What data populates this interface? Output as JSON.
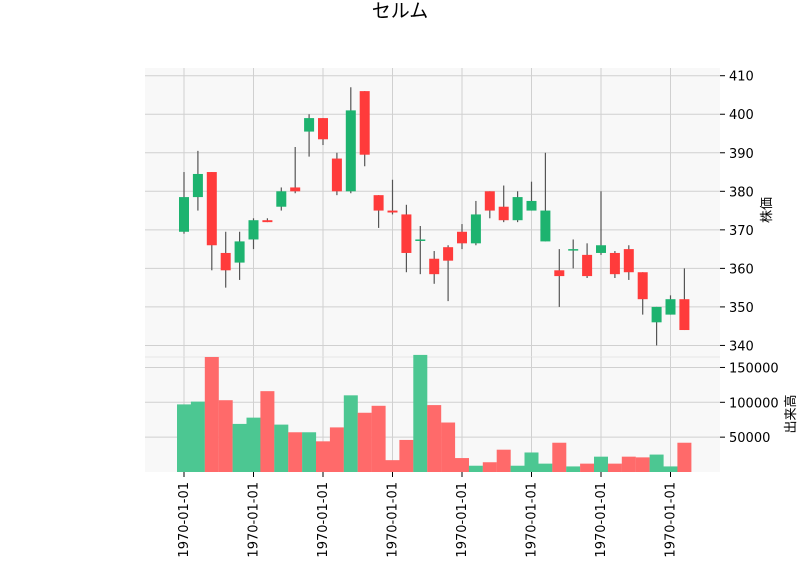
{
  "chart_data": {
    "type": "candlestick",
    "title": "セルム",
    "price_axis_label": "株価",
    "volume_axis_label": "出来高",
    "price_ylim": [
      337,
      412
    ],
    "volume_ylim": [
      0,
      165000
    ],
    "price_ticks": [
      340,
      350,
      360,
      370,
      380,
      390,
      400,
      410
    ],
    "volume_ticks": [
      50000,
      100000,
      150000
    ],
    "x_tick_labels": [
      "1970-01-01",
      "1970-01-01",
      "1970-01-01",
      "1970-01-01",
      "1970-01-01",
      "1970-01-01",
      "1970-01-01",
      "1970-01-01"
    ],
    "x_tick_indices": [
      0,
      5,
      10,
      15,
      20,
      25,
      30,
      35
    ],
    "colors": {
      "up": "#1db36f",
      "down": "#ff3b3b",
      "up_volume": "#4cc792",
      "down_volume": "#ff6a6a",
      "background": "#f8f8f8"
    },
    "grid": true,
    "candles": [
      {
        "open": 369.5,
        "high": 385.0,
        "low": 369.0,
        "close": 378.5,
        "volume": 97000
      },
      {
        "open": 378.5,
        "high": 390.5,
        "low": 375.0,
        "close": 384.5,
        "volume": 101000
      },
      {
        "open": 385.0,
        "high": 385.0,
        "low": 359.5,
        "close": 366.0,
        "volume": 165000
      },
      {
        "open": 364.0,
        "high": 369.5,
        "low": 355.0,
        "close": 359.5,
        "volume": 103000
      },
      {
        "open": 361.5,
        "high": 369.5,
        "low": 357.0,
        "close": 367.0,
        "volume": 69000
      },
      {
        "open": 367.5,
        "high": 373.0,
        "low": 365.0,
        "close": 372.5,
        "volume": 78000
      },
      {
        "open": 372.5,
        "high": 373.0,
        "low": 372.0,
        "close": 372.0,
        "volume": 116000
      },
      {
        "open": 376.0,
        "high": 381.0,
        "low": 375.0,
        "close": 380.0,
        "volume": 68000
      },
      {
        "open": 381.0,
        "high": 391.5,
        "low": 379.5,
        "close": 380.0,
        "volume": 57000
      },
      {
        "open": 395.5,
        "high": 400.0,
        "low": 389.0,
        "close": 399.0,
        "volume": 57000
      },
      {
        "open": 399.0,
        "high": 399.0,
        "low": 392.0,
        "close": 393.5,
        "volume": 44000
      },
      {
        "open": 388.5,
        "high": 390.0,
        "low": 379.0,
        "close": 380.0,
        "volume": 64000
      },
      {
        "open": 380.0,
        "high": 407.0,
        "low": 379.5,
        "close": 401.0,
        "volume": 110000
      },
      {
        "open": 406.0,
        "high": 406.0,
        "low": 386.5,
        "close": 389.5,
        "volume": 85000
      },
      {
        "open": 379.0,
        "high": 379.0,
        "low": 370.5,
        "close": 375.0,
        "volume": 95000
      },
      {
        "open": 375.0,
        "high": 383.0,
        "low": 374.0,
        "close": 374.5,
        "volume": 17000
      },
      {
        "open": 374.0,
        "high": 376.5,
        "low": 359.0,
        "close": 364.0,
        "volume": 46000
      },
      {
        "open": 367.5,
        "high": 371.0,
        "low": 358.5,
        "close": 367.5,
        "volume": 168000
      },
      {
        "open": 362.5,
        "high": 364.5,
        "low": 356.0,
        "close": 358.5,
        "volume": 96000
      },
      {
        "open": 365.5,
        "high": 366.0,
        "low": 351.5,
        "close": 362.0,
        "volume": 71000
      },
      {
        "open": 369.5,
        "high": 371.5,
        "low": 365.0,
        "close": 366.5,
        "volume": 20000
      },
      {
        "open": 366.5,
        "high": 377.5,
        "low": 366.0,
        "close": 374.0,
        "volume": 9000
      },
      {
        "open": 380.0,
        "high": 380.0,
        "low": 373.0,
        "close": 375.0,
        "volume": 14000
      },
      {
        "open": 376.0,
        "high": 381.5,
        "low": 372.0,
        "close": 372.5,
        "volume": 32000
      },
      {
        "open": 372.5,
        "high": 380.0,
        "low": 372.0,
        "close": 378.5,
        "volume": 9000
      },
      {
        "open": 375.0,
        "high": 382.5,
        "low": 375.0,
        "close": 377.5,
        "volume": 28000
      },
      {
        "open": 367.0,
        "high": 390.0,
        "low": 367.0,
        "close": 375.0,
        "volume": 12000
      },
      {
        "open": 359.5,
        "high": 365.0,
        "low": 350.0,
        "close": 358.0,
        "volume": 42000
      },
      {
        "open": 365.0,
        "high": 367.5,
        "low": 360.0,
        "close": 365.0,
        "volume": 8000
      },
      {
        "open": 363.5,
        "high": 366.5,
        "low": 357.5,
        "close": 358.0,
        "volume": 12000
      },
      {
        "open": 364.0,
        "high": 380.0,
        "low": 363.5,
        "close": 366.0,
        "volume": 22000
      },
      {
        "open": 364.0,
        "high": 364.5,
        "low": 357.5,
        "close": 358.5,
        "volume": 12000
      },
      {
        "open": 365.0,
        "high": 366.0,
        "low": 357.0,
        "close": 359.0,
        "volume": 22000
      },
      {
        "open": 359.0,
        "high": 359.0,
        "low": 348.0,
        "close": 352.0,
        "volume": 21000
      },
      {
        "open": 346.0,
        "high": 350.0,
        "low": 340.0,
        "close": 350.0,
        "volume": 25000
      },
      {
        "open": 348.0,
        "high": 353.0,
        "low": 348.0,
        "close": 352.0,
        "volume": 8000
      },
      {
        "open": 352.0,
        "high": 360.0,
        "low": 344.0,
        "close": 344.0,
        "volume": 42000
      }
    ]
  }
}
